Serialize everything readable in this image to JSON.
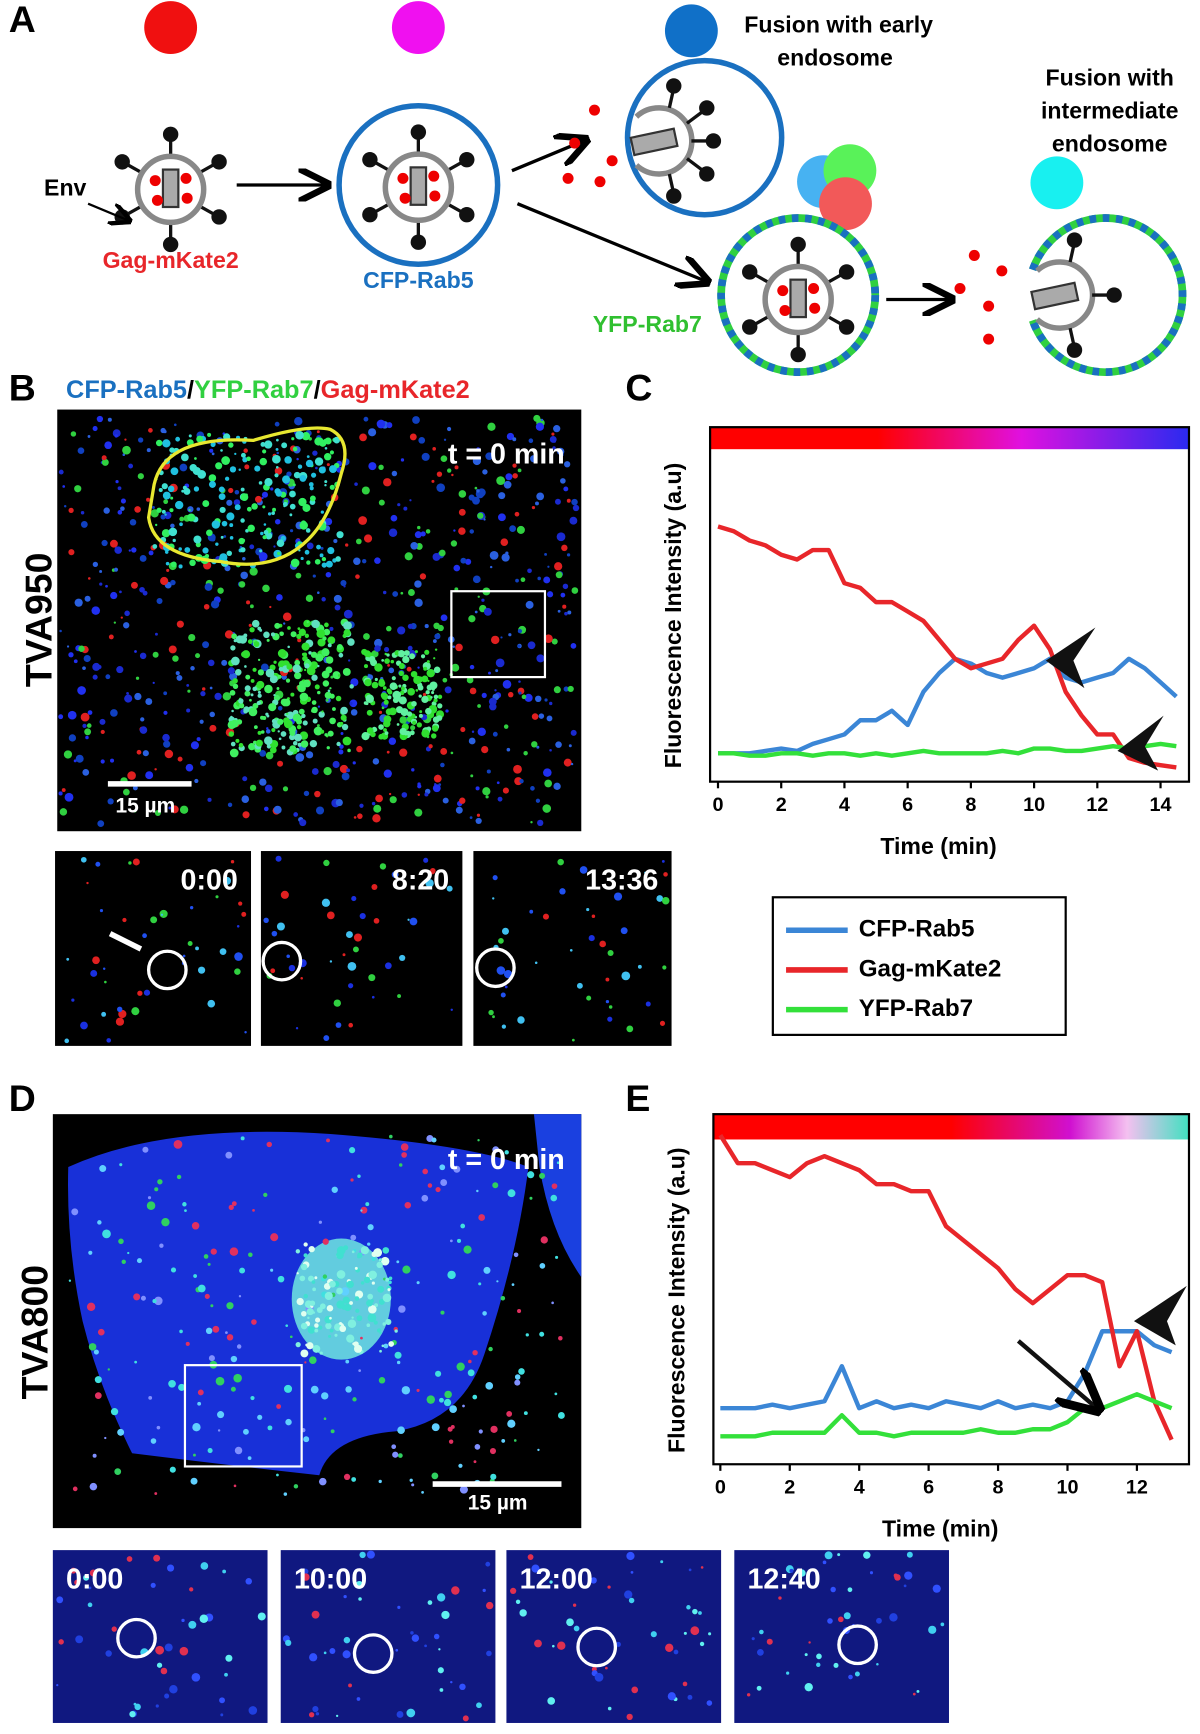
{
  "panels": {
    "a": "A",
    "b": "B",
    "c": "C",
    "d": "D",
    "e": "E"
  },
  "diagram": {
    "env": "Env",
    "gag": "Gag-mKate2",
    "rab5": "CFP-Rab5",
    "rab7": "YFP-Rab7",
    "early": [
      "Fusion with early",
      "endosome"
    ],
    "intermediate": [
      "Fusion with",
      "intermediate",
      "endosome"
    ]
  },
  "panel_b": {
    "title": [
      "CFP-Rab5",
      "/",
      "YFP-Rab7",
      "/",
      "Gag-mKate2"
    ],
    "cell": "TVA950",
    "time": "t = 0 min",
    "scale": "15 µm",
    "insets": [
      "0:00",
      "8:20",
      "13:36"
    ]
  },
  "panel_d": {
    "cell": "TVA800",
    "time": "t = 0 min",
    "scale": "15 µm",
    "insets": [
      "0:00",
      "10:00",
      "12:00",
      "12:40"
    ]
  },
  "chart_data": [
    {
      "type": "line",
      "xlabel": "Time (min)",
      "ylabel": "Fluorescence Intensity (a.u)",
      "xlim": [
        -0.25,
        14.9
      ],
      "ylim": [
        0,
        7.5
      ],
      "xticks": [
        0,
        2,
        4,
        6,
        8,
        10,
        12,
        14
      ],
      "x": [
        0,
        0.5,
        1,
        1.5,
        2,
        2.5,
        3,
        3.5,
        4,
        4.5,
        5,
        5.5,
        6,
        6.5,
        7,
        7.5,
        8,
        8.5,
        9,
        9.5,
        10,
        10.5,
        11,
        11.5,
        12,
        12.5,
        13,
        13.5,
        14,
        14.5
      ],
      "series": [
        {
          "name": "CFP-Rab5",
          "color": "#3b86d6",
          "values": [
            0.6,
            0.6,
            0.6,
            0.65,
            0.7,
            0.65,
            0.8,
            0.9,
            1.0,
            1.3,
            1.3,
            1.5,
            1.2,
            1.9,
            2.3,
            2.6,
            2.5,
            2.3,
            2.2,
            2.3,
            2.4,
            2.6,
            2.2,
            2.1,
            2.2,
            2.3,
            2.6,
            2.4,
            2.1,
            1.8
          ]
        },
        {
          "name": "Gag-mKate2",
          "color": "#e8262a",
          "values": [
            5.4,
            5.3,
            5.1,
            5.0,
            4.8,
            4.7,
            4.9,
            4.9,
            4.2,
            4.1,
            3.8,
            3.8,
            3.6,
            3.4,
            3.0,
            2.6,
            2.4,
            2.5,
            2.6,
            3.0,
            3.3,
            2.8,
            1.9,
            1.4,
            1.0,
            1.0,
            0.5,
            0.4,
            0.35,
            0.3
          ]
        },
        {
          "name": "YFP-Rab7",
          "color": "#33e03a",
          "values": [
            0.6,
            0.6,
            0.55,
            0.55,
            0.6,
            0.6,
            0.55,
            0.6,
            0.6,
            0.55,
            0.6,
            0.55,
            0.6,
            0.65,
            0.6,
            0.6,
            0.6,
            0.6,
            0.65,
            0.6,
            0.7,
            0.7,
            0.65,
            0.65,
            0.7,
            0.75,
            0.7,
            0.75,
            0.8,
            0.75
          ]
        }
      ]
    },
    {
      "type": "line",
      "xlabel": "Time (min)",
      "ylabel": "Fluorescence Intensity (a.u)",
      "xlim": [
        -0.2,
        13.5
      ],
      "ylim": [
        0,
        5
      ],
      "xticks": [
        0,
        2,
        4,
        6,
        8,
        10,
        12
      ],
      "x": [
        0,
        0.5,
        1,
        1.5,
        2,
        2.5,
        3,
        3.5,
        4,
        4.5,
        5,
        5.5,
        6,
        6.5,
        7,
        7.5,
        8,
        8.5,
        9,
        9.5,
        10,
        10.5,
        11,
        11.5,
        12,
        12.5,
        13
      ],
      "series": [
        {
          "color": "#3b86d6",
          "values": [
            0.8,
            0.8,
            0.8,
            0.85,
            0.8,
            0.85,
            0.9,
            1.4,
            0.8,
            0.9,
            0.8,
            0.85,
            0.8,
            0.9,
            0.85,
            0.8,
            0.9,
            0.8,
            0.85,
            0.8,
            0.9,
            1.3,
            1.9,
            1.9,
            1.9,
            1.7,
            1.6
          ]
        },
        {
          "color": "#e8262a",
          "values": [
            4.7,
            4.3,
            4.3,
            4.2,
            4.1,
            4.3,
            4.4,
            4.3,
            4.2,
            4.0,
            4.0,
            3.9,
            3.9,
            3.4,
            3.2,
            3.0,
            2.8,
            2.5,
            2.3,
            2.5,
            2.7,
            2.7,
            2.6,
            1.4,
            1.9,
            0.9,
            0.35
          ]
        },
        {
          "color": "#33e03a",
          "values": [
            0.4,
            0.4,
            0.4,
            0.45,
            0.45,
            0.45,
            0.45,
            0.7,
            0.45,
            0.45,
            0.4,
            0.45,
            0.45,
            0.45,
            0.45,
            0.5,
            0.45,
            0.45,
            0.5,
            0.5,
            0.6,
            0.8,
            0.8,
            0.9,
            1.0,
            0.9,
            0.8
          ]
        }
      ]
    }
  ]
}
